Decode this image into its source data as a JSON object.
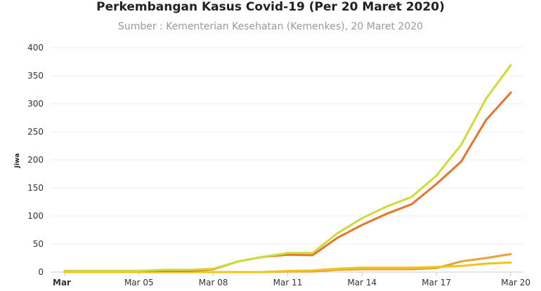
{
  "chart_data": {
    "type": "line",
    "title": "Perkembangan Kasus Covid-19 (Per 20 Maret 2020)",
    "subtitle": "Sumber : Kementerian Kesehatan (Kemenkes), 20 Maret 2020",
    "xlabel": "",
    "ylabel": "Jiwa",
    "ylim": [
      0,
      400
    ],
    "yticks": [
      0,
      50,
      100,
      150,
      200,
      250,
      300,
      350,
      400
    ],
    "x": [
      "Mar 02",
      "Mar 03",
      "Mar 04",
      "Mar 05",
      "Mar 06",
      "Mar 07",
      "Mar 08",
      "Mar 09",
      "Mar 10",
      "Mar 11",
      "Mar 12",
      "Mar 13",
      "Mar 14",
      "Mar 15",
      "Mar 16",
      "Mar 17",
      "Mar 18",
      "Mar 19",
      "Mar 20"
    ],
    "xtick_labels": [
      "Mar",
      "Mar 05",
      "Mar 08",
      "Mar 11",
      "Mar 14",
      "Mar 17",
      "Mar 20"
    ],
    "grid": true,
    "series": [
      {
        "color": "#cddc39",
        "values": [
          2,
          2,
          2,
          2,
          4,
          4,
          6,
          19,
          27,
          34,
          34,
          69,
          96,
          117,
          134,
          172,
          227,
          309,
          369
        ]
      },
      {
        "color": "#e8742c",
        "values": [
          2,
          2,
          2,
          2,
          2,
          2,
          5,
          19,
          27,
          31,
          30,
          61,
          84,
          104,
          121,
          157,
          197,
          271,
          320
        ]
      },
      {
        "color": "#e8a23a",
        "values": [
          0,
          0,
          0,
          0,
          0,
          0,
          0,
          0,
          0,
          1,
          1,
          4,
          5,
          5,
          5,
          7,
          19,
          25,
          32
        ]
      },
      {
        "color": "#f0c419",
        "values": [
          0,
          0,
          0,
          0,
          0,
          0,
          0,
          0,
          0,
          2,
          3,
          6,
          8,
          8,
          8,
          9,
          11,
          15,
          17
        ]
      }
    ]
  }
}
